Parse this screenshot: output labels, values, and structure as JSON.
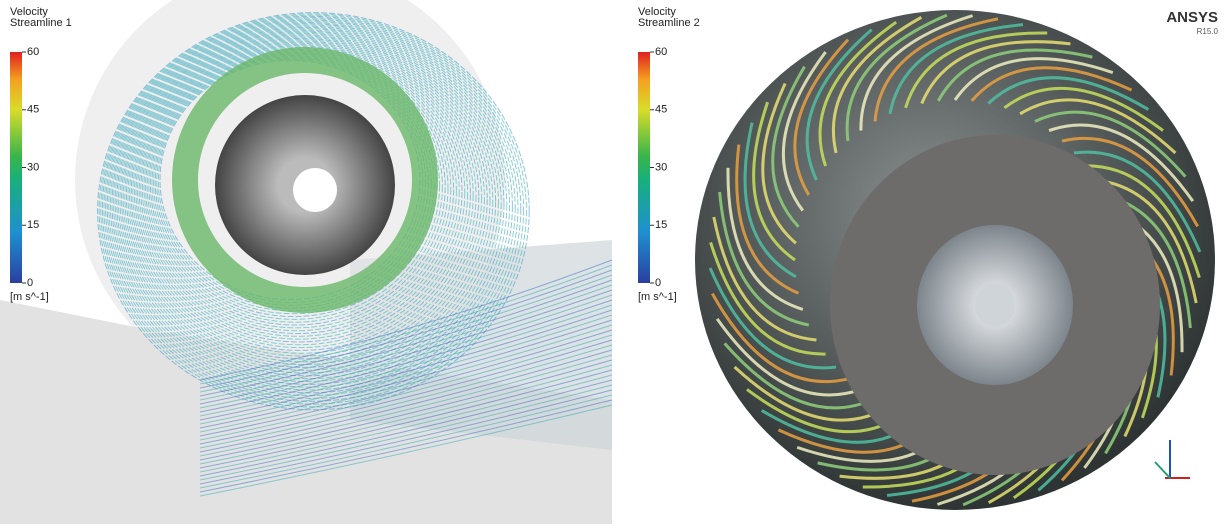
{
  "panels": [
    {
      "legend": {
        "title": "Velocity",
        "subtitle": "Streamline 1",
        "range": [
          0,
          60
        ],
        "ticks": [
          60,
          45,
          30,
          15,
          0
        ],
        "unit": "[m s^-1]"
      }
    },
    {
      "legend": {
        "title": "Velocity",
        "subtitle": "Streamline 2",
        "range": [
          0,
          60
        ],
        "ticks": [
          60,
          45,
          30,
          15,
          0
        ],
        "unit": "[m s^-1]"
      },
      "brand": "ANSYS",
      "version": "R15.0"
    }
  ]
}
